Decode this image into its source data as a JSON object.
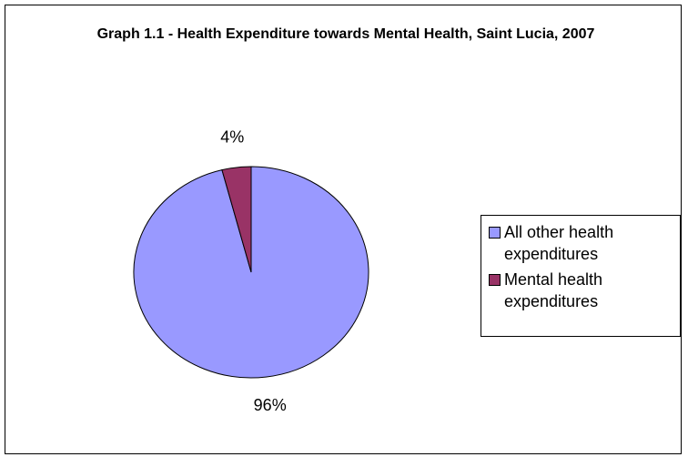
{
  "chart_data": {
    "type": "pie",
    "title": "Graph 1.1 - Health Expenditure towards Mental Health, Saint Lucia, 2007",
    "categories": [
      "All other health expenditures",
      "Mental health expenditures"
    ],
    "values": [
      96,
      4
    ],
    "value_labels": [
      "96%",
      "4%"
    ],
    "colors": [
      "#9999ff",
      "#993366"
    ],
    "legend": "right"
  }
}
